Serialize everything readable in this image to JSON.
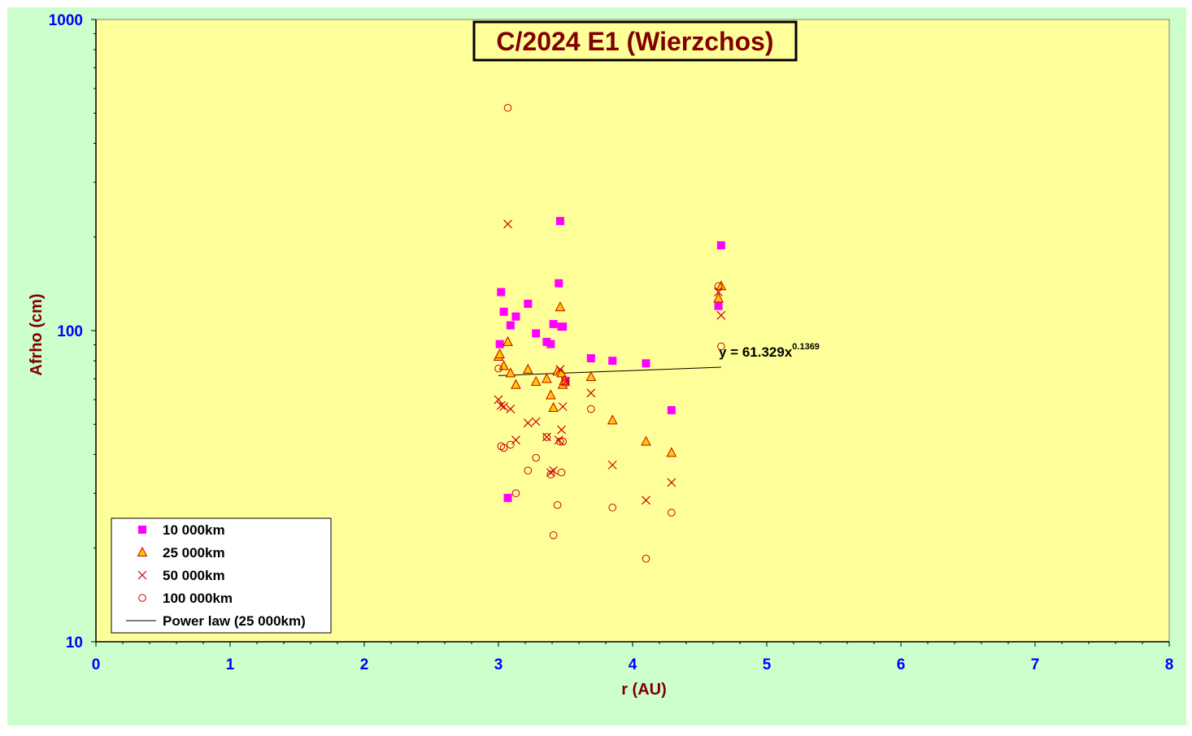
{
  "chart_data": {
    "type": "scatter",
    "title": "C/2024 E1 (Wierzchos)",
    "xlabel": "r (AU)",
    "ylabel": "Afrho (cm)",
    "x_scale": "linear",
    "y_scale": "log",
    "xlim": [
      0,
      8
    ],
    "ylim": [
      10,
      1000
    ],
    "x_ticks": [
      "0",
      "1",
      "2",
      "3",
      "4",
      "5",
      "6",
      "7",
      "8"
    ],
    "y_ticks": [
      "10",
      "100",
      "1000"
    ],
    "grid": false,
    "legend_position": "bottom-left",
    "fit_label": "y = 61.329x",
    "fit_exponent": "0.1369",
    "colors": {
      "outer_background": "#ccffcc",
      "plot_background": "#ffff99",
      "axis_text": "#0000ff",
      "label_text": "#800000",
      "square_marker": "#ff00ff",
      "triangle_fill": "#ffcc00",
      "marker_stroke": "#cc0000"
    },
    "series": [
      {
        "name": "10 000km",
        "marker": "square",
        "points": [
          [
            3.01,
            90.5
          ],
          [
            3.02,
            133
          ],
          [
            3.04,
            115
          ],
          [
            3.07,
            29
          ],
          [
            3.09,
            104
          ],
          [
            3.13,
            111
          ],
          [
            3.22,
            122
          ],
          [
            3.28,
            98
          ],
          [
            3.36,
            92
          ],
          [
            3.39,
            90.5
          ],
          [
            3.41,
            105
          ],
          [
            3.45,
            142
          ],
          [
            3.46,
            225
          ],
          [
            3.47,
            103
          ],
          [
            3.48,
            103
          ],
          [
            3.5,
            69
          ],
          [
            3.69,
            81.5
          ],
          [
            3.85,
            80
          ],
          [
            4.1,
            78.5
          ],
          [
            4.29,
            55.5
          ],
          [
            4.64,
            120
          ],
          [
            4.66,
            188
          ]
        ]
      },
      {
        "name": "25 000km",
        "marker": "triangle",
        "points": [
          [
            3.0,
            82.5
          ],
          [
            3.01,
            84
          ],
          [
            3.04,
            77
          ],
          [
            3.07,
            92
          ],
          [
            3.09,
            73
          ],
          [
            3.13,
            67
          ],
          [
            3.22,
            75
          ],
          [
            3.28,
            68.5
          ],
          [
            3.36,
            70
          ],
          [
            3.39,
            62
          ],
          [
            3.41,
            56.5
          ],
          [
            3.44,
            74
          ],
          [
            3.46,
            119
          ],
          [
            3.47,
            73
          ],
          [
            3.48,
            67
          ],
          [
            3.49,
            69
          ],
          [
            3.69,
            71
          ],
          [
            3.85,
            51.5
          ],
          [
            4.1,
            44
          ],
          [
            4.29,
            40.5
          ],
          [
            4.64,
            127
          ],
          [
            4.66,
            139
          ]
        ]
      },
      {
        "name": "50 000km",
        "marker": "x",
        "points": [
          [
            3.0,
            60
          ],
          [
            3.02,
            57.5
          ],
          [
            3.04,
            57
          ],
          [
            3.07,
            220
          ],
          [
            3.09,
            56
          ],
          [
            3.13,
            44.5
          ],
          [
            3.22,
            50.5
          ],
          [
            3.28,
            51
          ],
          [
            3.36,
            45.5
          ],
          [
            3.39,
            35
          ],
          [
            3.41,
            35.5
          ],
          [
            3.45,
            44.5
          ],
          [
            3.46,
            75
          ],
          [
            3.47,
            48
          ],
          [
            3.48,
            57
          ],
          [
            3.5,
            68.5
          ],
          [
            3.69,
            63
          ],
          [
            3.85,
            37
          ],
          [
            4.1,
            28.5
          ],
          [
            4.29,
            32.5
          ],
          [
            4.64,
            133
          ],
          [
            4.66,
            112
          ]
        ]
      },
      {
        "name": "100 000km",
        "marker": "circle",
        "points": [
          [
            3.0,
            75.5
          ],
          [
            3.02,
            42.5
          ],
          [
            3.04,
            42
          ],
          [
            3.07,
            520
          ],
          [
            3.09,
            43
          ],
          [
            3.13,
            30
          ],
          [
            3.22,
            35.5
          ],
          [
            3.28,
            39
          ],
          [
            3.36,
            45.5
          ],
          [
            3.39,
            34.5
          ],
          [
            3.41,
            22
          ],
          [
            3.44,
            27.5
          ],
          [
            3.46,
            44
          ],
          [
            3.47,
            35
          ],
          [
            3.48,
            44
          ],
          [
            3.5,
            68
          ],
          [
            3.69,
            56
          ],
          [
            3.85,
            27
          ],
          [
            4.1,
            18.5
          ],
          [
            4.29,
            26
          ],
          [
            4.64,
            139
          ],
          [
            4.66,
            89
          ]
        ]
      },
      {
        "name": "Power law (25 000km)",
        "marker": "line",
        "points": [
          [
            3.0,
            71.7
          ],
          [
            4.66,
            76.3
          ]
        ]
      }
    ]
  }
}
